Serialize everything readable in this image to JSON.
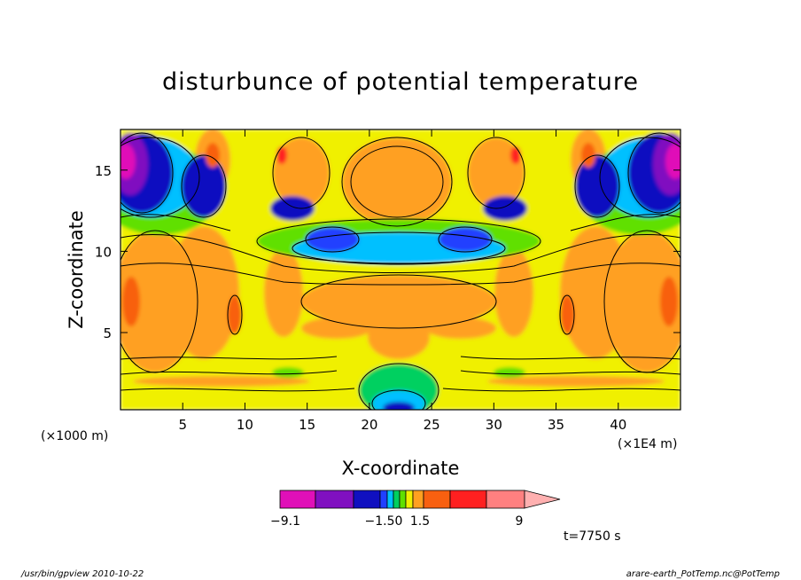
{
  "chart_data": {
    "type": "heatmap",
    "title": "disturbunce of potential temperature",
    "xlabel": "X-coordinate",
    "ylabel": "Z-coordinate",
    "x_units": "(×1E4 m)",
    "y_units": "(×1000 m)",
    "xlim": [
      0,
      45
    ],
    "ylim": [
      0.25,
      17.5
    ],
    "x_ticks": [
      "5",
      "10",
      "15",
      "20",
      "25",
      "30",
      "35",
      "40"
    ],
    "x_tick_values": [
      5,
      10,
      15,
      20,
      25,
      30,
      35,
      40
    ],
    "y_ticks": [
      "5",
      "10",
      "15"
    ],
    "y_tick_values": [
      5,
      10,
      15
    ],
    "colorbar": {
      "tick_labels": [
        "−9.1",
        "−1.50",
        "1.5",
        "9"
      ],
      "colors": [
        "#e010b8",
        "#8010c0",
        "#1010c0",
        "#2040ff",
        "#00c0ff",
        "#00d060",
        "#60e000",
        "#f0f000",
        "#ffa020",
        "#f86010",
        "#ff2020",
        "#ff8080",
        "#ffb0b0"
      ],
      "extend": "max"
    },
    "time_label": "t=7750 s"
  },
  "footer": {
    "left": "/usr/bin/gpview  2010-10-22",
    "right": "arare-earth_PotTemp.nc@PotTemp"
  }
}
